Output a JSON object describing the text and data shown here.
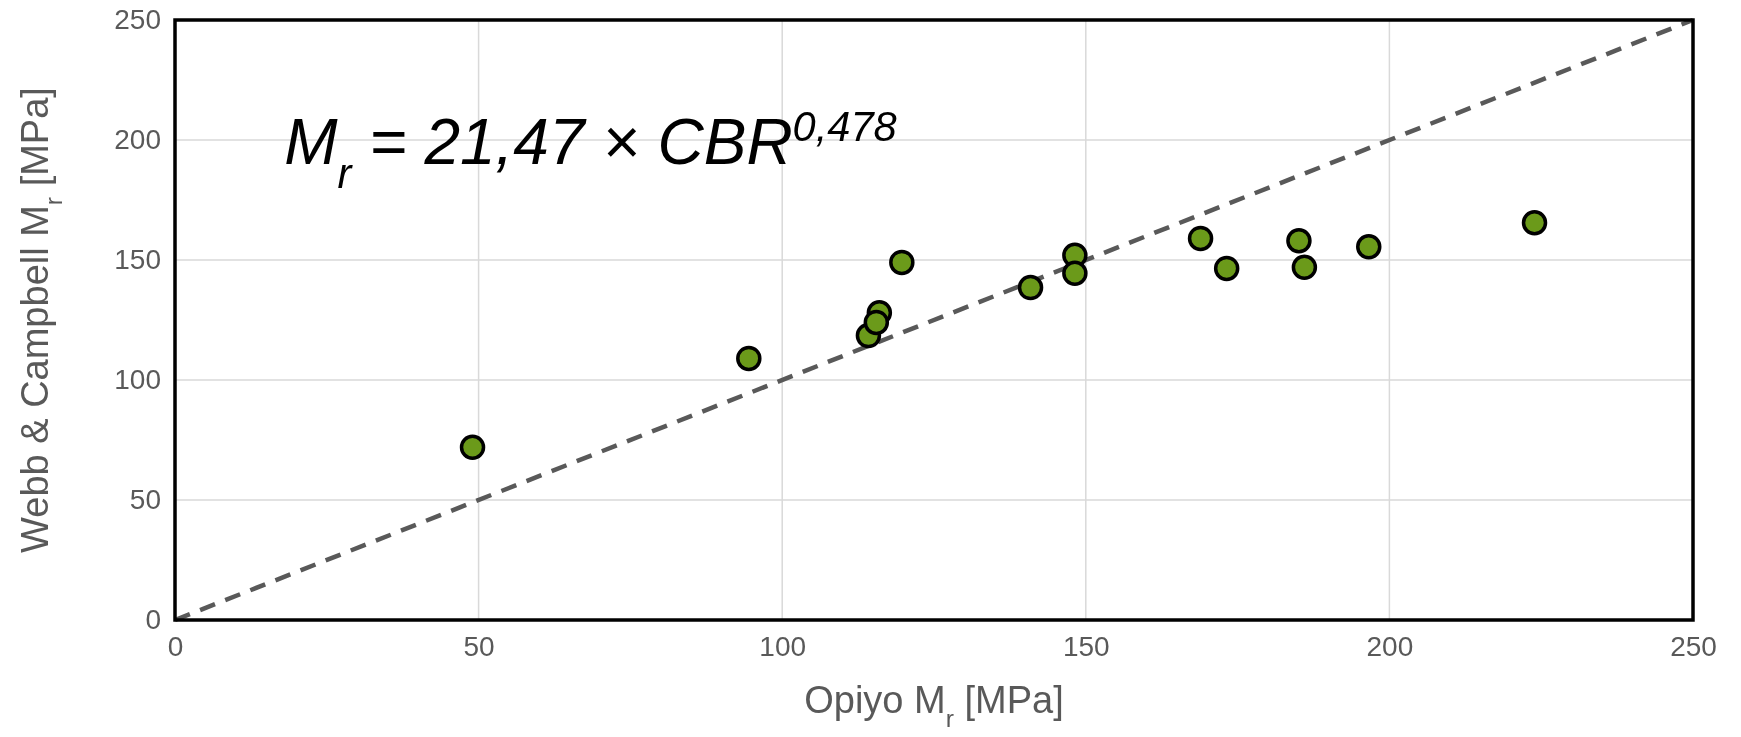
{
  "chart_data": {
    "type": "scatter",
    "xlabel": "Opiyo M$_{r}$ [MPa]",
    "ylabel": "Webb & Campbell M$_{r}$ [MPa]",
    "xlim": [
      0,
      250
    ],
    "ylim": [
      0,
      250
    ],
    "xticks": [
      0,
      50,
      100,
      150,
      200,
      250
    ],
    "yticks": [
      0,
      50,
      100,
      150,
      200,
      250
    ],
    "grid": true,
    "annotations": [
      "M$_{r}$ = 21,47 × CBR$^{0,478}$"
    ],
    "series": [
      {
        "type": "line",
        "color": "#595959",
        "line_style": "dashed",
        "marker": "none",
        "x": [
          0,
          250
        ],
        "values": [
          0,
          250
        ]
      },
      {
        "color": "#6b9a1a",
        "marker": "circle",
        "x": [
          49,
          94.5,
          114.2,
          116,
          115.5,
          119.7,
          140.9,
          148.2,
          148.2,
          168.9,
          173.2,
          185.1,
          186,
          196.6,
          223.9
        ],
        "values": [
          72,
          109,
          118.5,
          128,
          124,
          149,
          138.5,
          152,
          144.5,
          159,
          146.5,
          158,
          147,
          155.5,
          165.5
        ]
      }
    ]
  }
}
